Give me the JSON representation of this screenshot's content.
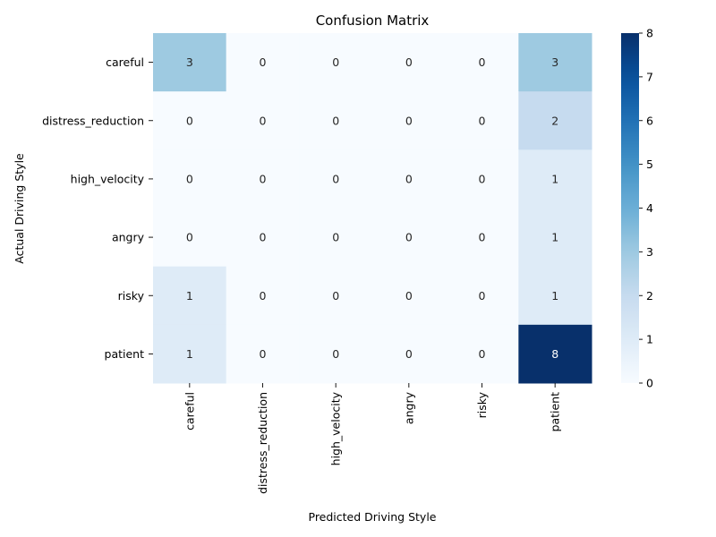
{
  "chart_data": {
    "type": "heatmap",
    "title": "Confusion Matrix",
    "xlabel": "Predicted Driving Style",
    "ylabel": "Actual Driving Style",
    "x_categories": [
      "careful",
      "distress_reduction",
      "high_velocity",
      "angry",
      "risky",
      "patient"
    ],
    "y_categories": [
      "careful",
      "distress_reduction",
      "high_velocity",
      "angry",
      "risky",
      "patient"
    ],
    "values": [
      [
        3,
        0,
        0,
        0,
        0,
        3
      ],
      [
        0,
        0,
        0,
        0,
        0,
        2
      ],
      [
        0,
        0,
        0,
        0,
        0,
        1
      ],
      [
        0,
        0,
        0,
        0,
        0,
        1
      ],
      [
        1,
        0,
        0,
        0,
        0,
        1
      ],
      [
        1,
        0,
        0,
        0,
        0,
        8
      ]
    ],
    "colorbar": {
      "min": 0,
      "max": 8,
      "ticks": [
        0,
        1,
        2,
        3,
        4,
        5,
        6,
        7,
        8
      ],
      "colormap": "Blues"
    },
    "annotations": true,
    "grid": false
  }
}
